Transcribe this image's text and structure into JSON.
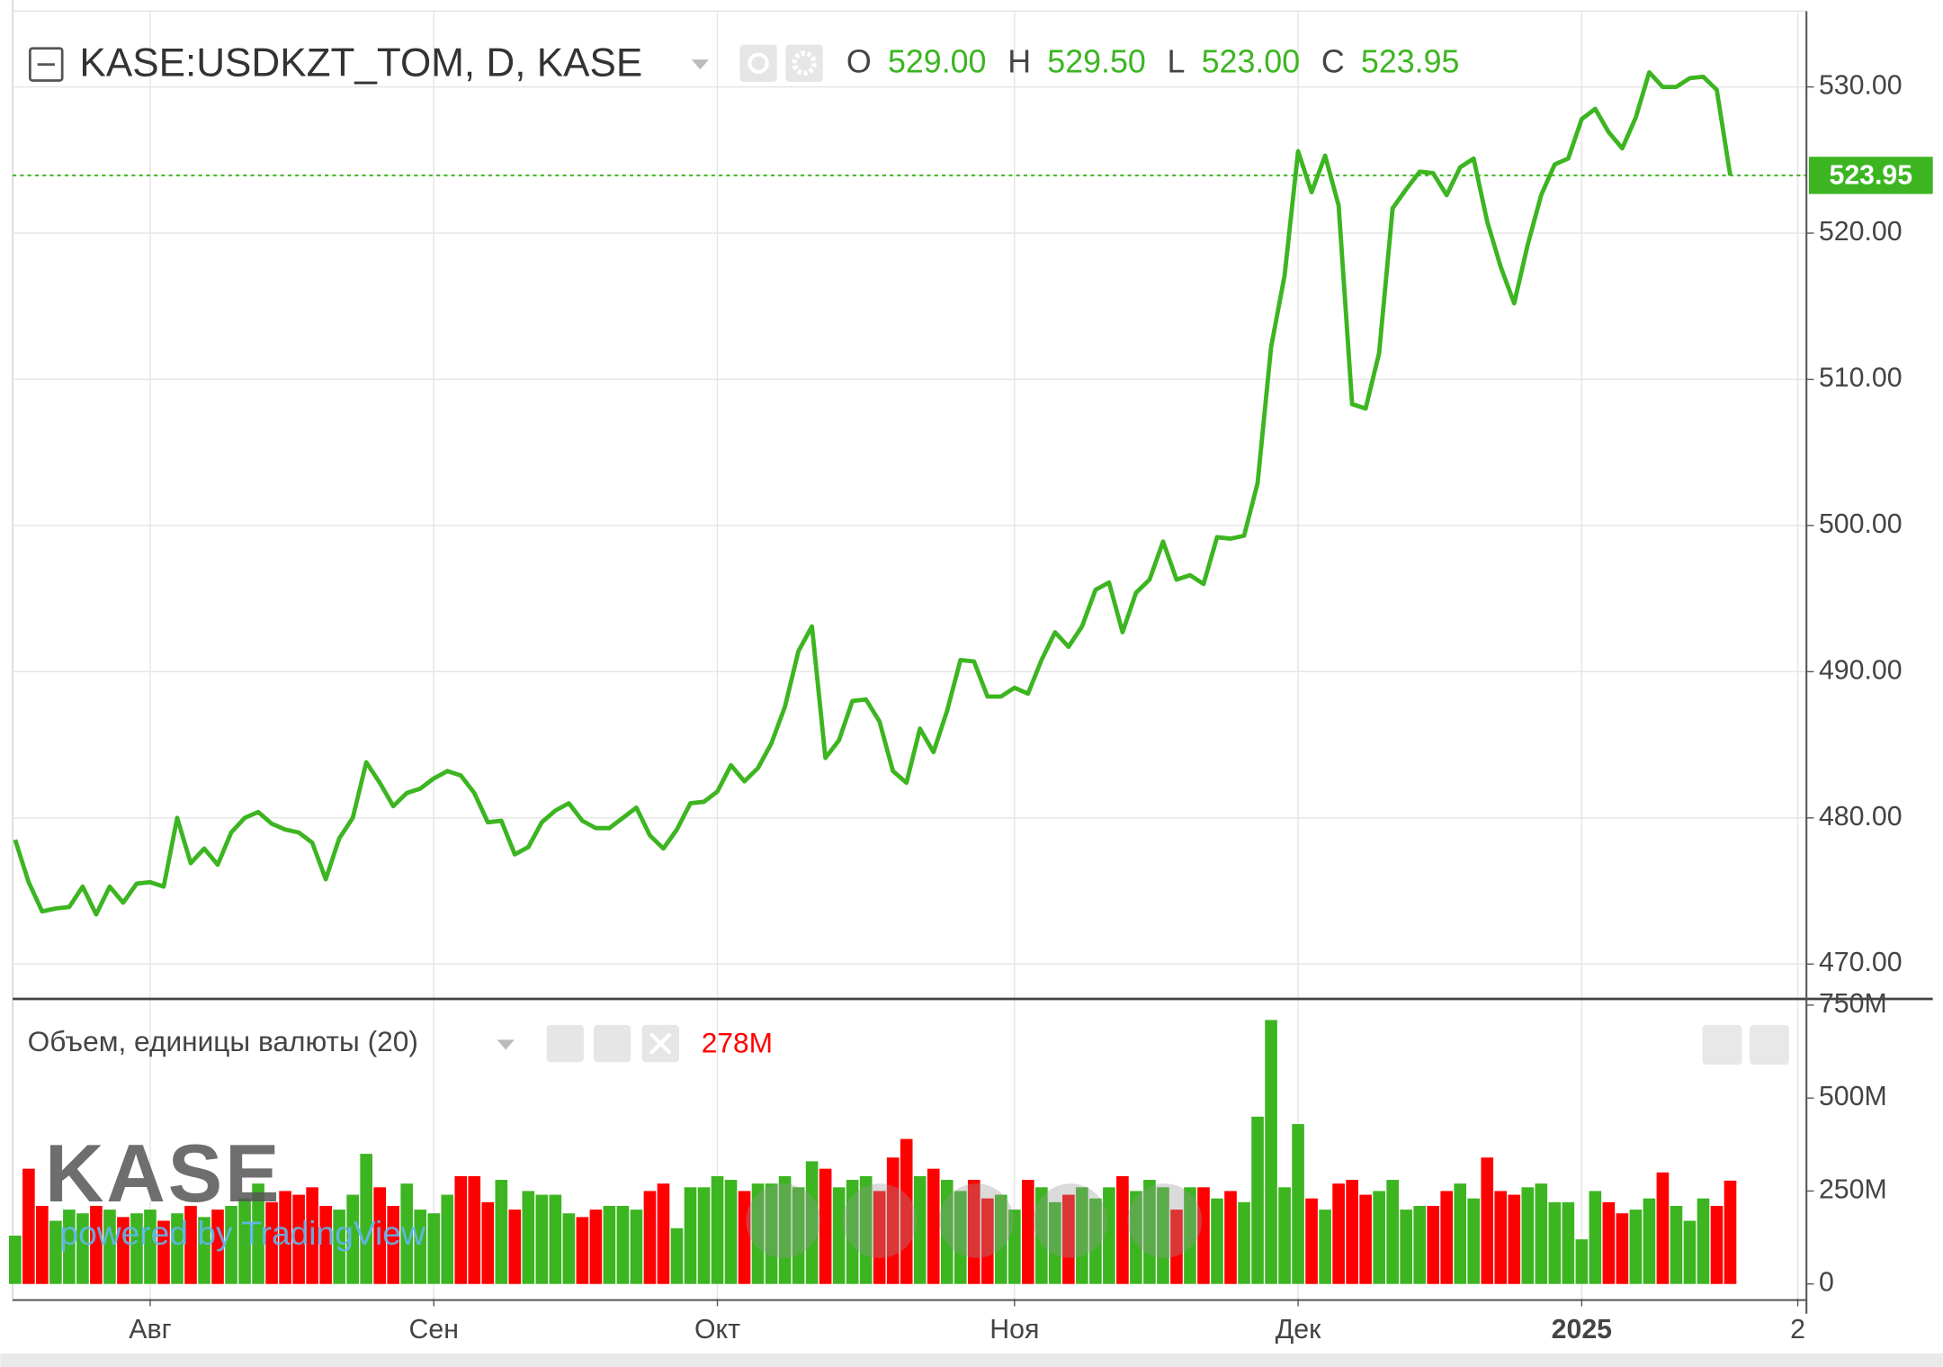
{
  "chart_data": [
    {
      "type": "line",
      "title": "KASE:USDKZT_TOM, D, KASE",
      "color": "#3cb521",
      "ohlc": {
        "labels": [
          "O",
          "H",
          "L",
          "C"
        ],
        "values": [
          {
            "value": 529,
            "label": "529.00"
          },
          {
            "value": 529.5,
            "label": "529.50"
          },
          {
            "value": 523,
            "label": "523.00"
          },
          {
            "value": 523.95,
            "label": "523.95"
          }
        ]
      },
      "values": [
        478.5,
        475.6,
        473.6,
        473.8,
        473.9,
        475.3,
        473.4,
        475.3,
        474.2,
        475.5,
        475.6,
        475.3,
        480.0,
        476.9,
        477.9,
        476.8,
        479.0,
        480.0,
        480.4,
        479.6,
        479.2,
        479.0,
        478.3,
        475.8,
        478.6,
        480.0,
        483.8,
        482.4,
        480.8,
        481.7,
        482.0,
        482.7,
        483.2,
        482.9,
        481.7,
        479.7,
        479.8,
        477.5,
        478.0,
        479.7,
        480.5,
        481.0,
        479.8,
        479.3,
        479.3,
        480.0,
        480.7,
        478.8,
        477.9,
        479.2,
        481.0,
        481.1,
        481.8,
        483.6,
        482.5,
        483.4,
        485.1,
        487.6,
        491.4,
        493.1,
        484.1,
        485.3,
        488.0,
        488.1,
        486.6,
        483.2,
        482.4,
        486.1,
        484.5,
        487.3,
        490.8,
        490.7,
        488.3,
        488.3,
        488.9,
        488.5,
        490.8,
        492.7,
        491.7,
        493.1,
        495.6,
        496.1,
        492.7,
        495.4,
        496.3,
        498.9,
        496.3,
        496.6,
        496.0,
        499.2,
        499.1,
        499.3,
        502.9,
        512.2,
        517.1,
        525.6,
        522.8,
        525.3,
        521.9,
        508.3,
        508.0,
        511.8,
        521.7,
        523.0,
        524.2,
        524.1,
        522.6,
        524.5,
        525.1,
        520.8,
        517.7,
        515.2,
        519.2,
        522.6,
        524.7,
        525.1,
        527.8,
        528.5,
        526.9,
        525.8,
        527.9,
        531.0,
        530.0,
        530.0,
        530.6,
        530.7,
        529.8,
        523.95,
        null,
        null,
        null,
        null,
        null
      ],
      "ylim": [
        467.7,
        535.1
      ],
      "yticks": [
        {
          "value": 470,
          "label": "470.00"
        },
        {
          "value": 480,
          "label": "480.00"
        },
        {
          "value": 490,
          "label": "490.00"
        },
        {
          "value": 500,
          "label": "500.00"
        },
        {
          "value": 510,
          "label": "510.00"
        },
        {
          "value": 520,
          "label": "520.00"
        },
        {
          "value": 530,
          "label": "530.00"
        }
      ],
      "grid": true
    },
    {
      "type": "bar",
      "title": "Объем, единицы валюты (20)",
      "current_value_label": "278M",
      "up_color": "#3cb521",
      "down_color": "#ff0000",
      "watermark": "KASE",
      "credit": "powered by TradingView",
      "categories": [
        null,
        null,
        null,
        null,
        null,
        null,
        null,
        null,
        null,
        null,
        "Авг",
        null,
        null,
        null,
        null,
        null,
        null,
        null,
        null,
        null,
        null,
        null,
        null,
        null,
        null,
        null,
        null,
        null,
        null,
        null,
        null,
        "Сен",
        null,
        null,
        null,
        null,
        null,
        null,
        null,
        null,
        null,
        null,
        null,
        null,
        null,
        null,
        null,
        null,
        null,
        null,
        null,
        null,
        "Окт",
        null,
        null,
        null,
        null,
        null,
        null,
        null,
        null,
        null,
        null,
        null,
        null,
        null,
        null,
        null,
        null,
        null,
        null,
        null,
        null,
        null,
        "Ноя",
        null,
        null,
        null,
        null,
        null,
        null,
        null,
        null,
        null,
        null,
        null,
        null,
        null,
        null,
        null,
        null,
        null,
        null,
        null,
        null,
        "Дек",
        null,
        null,
        null,
        null,
        null,
        null,
        null,
        null,
        null,
        null,
        null,
        null,
        null,
        null,
        null,
        null,
        null,
        null,
        null,
        null,
        "2025",
        null,
        null,
        null,
        null,
        null,
        null,
        null,
        null,
        null,
        null,
        null,
        null,
        null,
        null,
        null,
        "2"
      ],
      "values": [
        130,
        310,
        210,
        170,
        200,
        190,
        210,
        200,
        180,
        190,
        200,
        170,
        190,
        210,
        180,
        200,
        210,
        230,
        270,
        220,
        250,
        240,
        260,
        210,
        200,
        240,
        350,
        260,
        210,
        270,
        200,
        190,
        240,
        290,
        290,
        220,
        280,
        200,
        250,
        240,
        240,
        190,
        180,
        200,
        210,
        210,
        200,
        250,
        270,
        150,
        260,
        260,
        290,
        280,
        250,
        270,
        270,
        290,
        260,
        330,
        310,
        260,
        280,
        290,
        250,
        340,
        390,
        290,
        310,
        280,
        250,
        280,
        230,
        240,
        200,
        280,
        260,
        220,
        240,
        260,
        230,
        260,
        290,
        250,
        280,
        260,
        200,
        260,
        260,
        230,
        250,
        220,
        450,
        710,
        260,
        430,
        230,
        200,
        270,
        280,
        240,
        250,
        280,
        200,
        210,
        210,
        250,
        270,
        230,
        340,
        250,
        240,
        260,
        270,
        220,
        220,
        120,
        250,
        220,
        190,
        200,
        230,
        300,
        210,
        170,
        230,
        210,
        278,
        null,
        null,
        null,
        null,
        null
      ],
      "ylim": [
        -40,
        760
      ],
      "yticks": [
        0,
        {
          "value": 250,
          "label": "250M"
        },
        {
          "value": 500,
          "label": "500M"
        },
        {
          "value": 750,
          "label": "750M"
        }
      ]
    }
  ]
}
